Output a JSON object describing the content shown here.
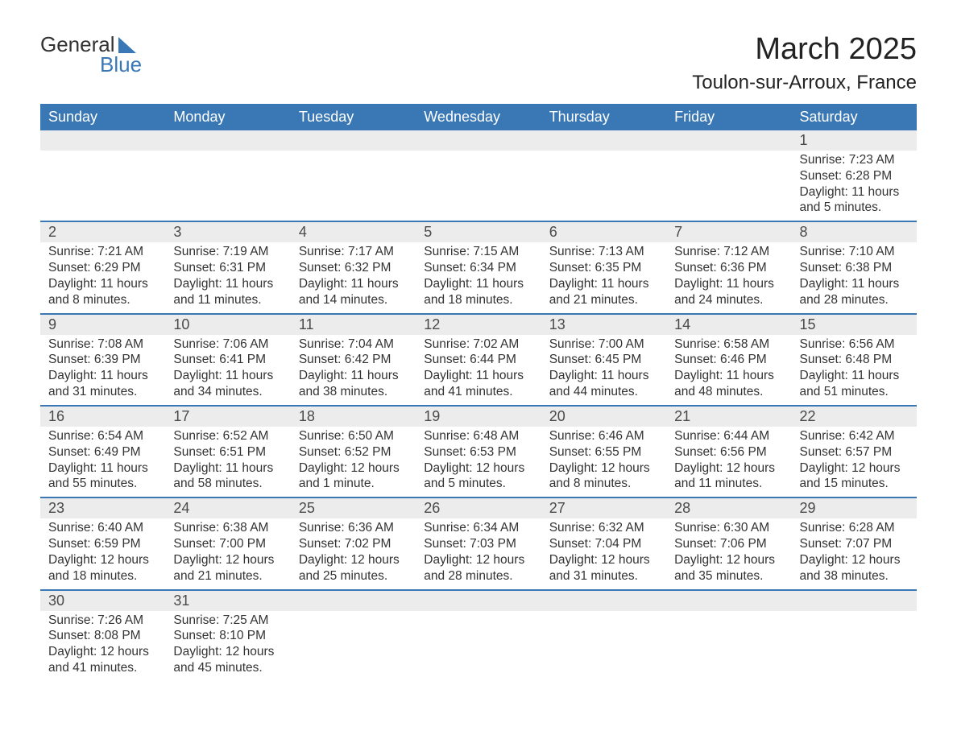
{
  "logo": {
    "line1": "General",
    "line2": "Blue"
  },
  "title": "March 2025",
  "location": "Toulon-sur-Arroux, France",
  "colors": {
    "header_bg": "#3a78b5",
    "header_text": "#ffffff",
    "daynum_bg": "#ececec",
    "week_border": "#3a78b5",
    "body_text": "#333333",
    "page_bg": "#ffffff"
  },
  "typography": {
    "month_title_size_pt": 29,
    "location_size_pt": 18,
    "dayheader_size_pt": 14,
    "daynum_size_pt": 14,
    "body_size_pt": 12
  },
  "day_headers": [
    "Sunday",
    "Monday",
    "Tuesday",
    "Wednesday",
    "Thursday",
    "Friday",
    "Saturday"
  ],
  "weeks": [
    [
      null,
      null,
      null,
      null,
      null,
      null,
      {
        "n": "1",
        "sunrise": "Sunrise: 7:23 AM",
        "sunset": "Sunset: 6:28 PM",
        "daylight": "Daylight: 11 hours and 5 minutes."
      }
    ],
    [
      {
        "n": "2",
        "sunrise": "Sunrise: 7:21 AM",
        "sunset": "Sunset: 6:29 PM",
        "daylight": "Daylight: 11 hours and 8 minutes."
      },
      {
        "n": "3",
        "sunrise": "Sunrise: 7:19 AM",
        "sunset": "Sunset: 6:31 PM",
        "daylight": "Daylight: 11 hours and 11 minutes."
      },
      {
        "n": "4",
        "sunrise": "Sunrise: 7:17 AM",
        "sunset": "Sunset: 6:32 PM",
        "daylight": "Daylight: 11 hours and 14 minutes."
      },
      {
        "n": "5",
        "sunrise": "Sunrise: 7:15 AM",
        "sunset": "Sunset: 6:34 PM",
        "daylight": "Daylight: 11 hours and 18 minutes."
      },
      {
        "n": "6",
        "sunrise": "Sunrise: 7:13 AM",
        "sunset": "Sunset: 6:35 PM",
        "daylight": "Daylight: 11 hours and 21 minutes."
      },
      {
        "n": "7",
        "sunrise": "Sunrise: 7:12 AM",
        "sunset": "Sunset: 6:36 PM",
        "daylight": "Daylight: 11 hours and 24 minutes."
      },
      {
        "n": "8",
        "sunrise": "Sunrise: 7:10 AM",
        "sunset": "Sunset: 6:38 PM",
        "daylight": "Daylight: 11 hours and 28 minutes."
      }
    ],
    [
      {
        "n": "9",
        "sunrise": "Sunrise: 7:08 AM",
        "sunset": "Sunset: 6:39 PM",
        "daylight": "Daylight: 11 hours and 31 minutes."
      },
      {
        "n": "10",
        "sunrise": "Sunrise: 7:06 AM",
        "sunset": "Sunset: 6:41 PM",
        "daylight": "Daylight: 11 hours and 34 minutes."
      },
      {
        "n": "11",
        "sunrise": "Sunrise: 7:04 AM",
        "sunset": "Sunset: 6:42 PM",
        "daylight": "Daylight: 11 hours and 38 minutes."
      },
      {
        "n": "12",
        "sunrise": "Sunrise: 7:02 AM",
        "sunset": "Sunset: 6:44 PM",
        "daylight": "Daylight: 11 hours and 41 minutes."
      },
      {
        "n": "13",
        "sunrise": "Sunrise: 7:00 AM",
        "sunset": "Sunset: 6:45 PM",
        "daylight": "Daylight: 11 hours and 44 minutes."
      },
      {
        "n": "14",
        "sunrise": "Sunrise: 6:58 AM",
        "sunset": "Sunset: 6:46 PM",
        "daylight": "Daylight: 11 hours and 48 minutes."
      },
      {
        "n": "15",
        "sunrise": "Sunrise: 6:56 AM",
        "sunset": "Sunset: 6:48 PM",
        "daylight": "Daylight: 11 hours and 51 minutes."
      }
    ],
    [
      {
        "n": "16",
        "sunrise": "Sunrise: 6:54 AM",
        "sunset": "Sunset: 6:49 PM",
        "daylight": "Daylight: 11 hours and 55 minutes."
      },
      {
        "n": "17",
        "sunrise": "Sunrise: 6:52 AM",
        "sunset": "Sunset: 6:51 PM",
        "daylight": "Daylight: 11 hours and 58 minutes."
      },
      {
        "n": "18",
        "sunrise": "Sunrise: 6:50 AM",
        "sunset": "Sunset: 6:52 PM",
        "daylight": "Daylight: 12 hours and 1 minute."
      },
      {
        "n": "19",
        "sunrise": "Sunrise: 6:48 AM",
        "sunset": "Sunset: 6:53 PM",
        "daylight": "Daylight: 12 hours and 5 minutes."
      },
      {
        "n": "20",
        "sunrise": "Sunrise: 6:46 AM",
        "sunset": "Sunset: 6:55 PM",
        "daylight": "Daylight: 12 hours and 8 minutes."
      },
      {
        "n": "21",
        "sunrise": "Sunrise: 6:44 AM",
        "sunset": "Sunset: 6:56 PM",
        "daylight": "Daylight: 12 hours and 11 minutes."
      },
      {
        "n": "22",
        "sunrise": "Sunrise: 6:42 AM",
        "sunset": "Sunset: 6:57 PM",
        "daylight": "Daylight: 12 hours and 15 minutes."
      }
    ],
    [
      {
        "n": "23",
        "sunrise": "Sunrise: 6:40 AM",
        "sunset": "Sunset: 6:59 PM",
        "daylight": "Daylight: 12 hours and 18 minutes."
      },
      {
        "n": "24",
        "sunrise": "Sunrise: 6:38 AM",
        "sunset": "Sunset: 7:00 PM",
        "daylight": "Daylight: 12 hours and 21 minutes."
      },
      {
        "n": "25",
        "sunrise": "Sunrise: 6:36 AM",
        "sunset": "Sunset: 7:02 PM",
        "daylight": "Daylight: 12 hours and 25 minutes."
      },
      {
        "n": "26",
        "sunrise": "Sunrise: 6:34 AM",
        "sunset": "Sunset: 7:03 PM",
        "daylight": "Daylight: 12 hours and 28 minutes."
      },
      {
        "n": "27",
        "sunrise": "Sunrise: 6:32 AM",
        "sunset": "Sunset: 7:04 PM",
        "daylight": "Daylight: 12 hours and 31 minutes."
      },
      {
        "n": "28",
        "sunrise": "Sunrise: 6:30 AM",
        "sunset": "Sunset: 7:06 PM",
        "daylight": "Daylight: 12 hours and 35 minutes."
      },
      {
        "n": "29",
        "sunrise": "Sunrise: 6:28 AM",
        "sunset": "Sunset: 7:07 PM",
        "daylight": "Daylight: 12 hours and 38 minutes."
      }
    ],
    [
      {
        "n": "30",
        "sunrise": "Sunrise: 7:26 AM",
        "sunset": "Sunset: 8:08 PM",
        "daylight": "Daylight: 12 hours and 41 minutes."
      },
      {
        "n": "31",
        "sunrise": "Sunrise: 7:25 AM",
        "sunset": "Sunset: 8:10 PM",
        "daylight": "Daylight: 12 hours and 45 minutes."
      },
      null,
      null,
      null,
      null,
      null
    ]
  ]
}
